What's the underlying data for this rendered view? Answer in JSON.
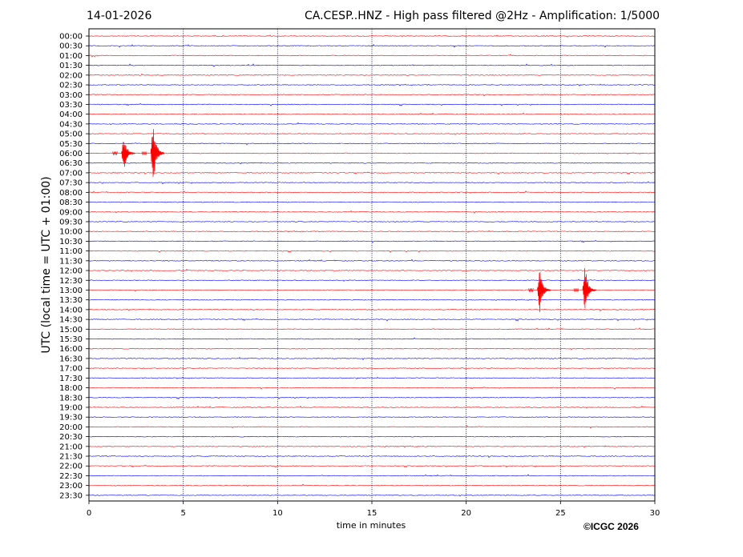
{
  "header": {
    "date": "14-01-2026",
    "title": "CA.CESP..HNZ - High pass filtered @2Hz - Amplification: 1/5000"
  },
  "footer": {
    "credit": "©ICGC 2026"
  },
  "chart_data": {
    "type": "line",
    "title": "CA.CESP..HNZ - High pass filtered @2Hz - Amplification: 1/5000",
    "xlabel": "time in minutes",
    "ylabel": "UTC (local time = UTC + 01:00)",
    "xlim": [
      0,
      30
    ],
    "x_ticks": [
      0,
      5,
      10,
      15,
      20,
      25,
      30
    ],
    "grid": "vertical dotted at each x tick",
    "trace_colors": [
      "#ff0000",
      "#0000ff"
    ],
    "rows": [
      "00:00",
      "00:30",
      "01:00",
      "01:30",
      "02:00",
      "02:30",
      "03:00",
      "03:30",
      "04:00",
      "04:30",
      "05:00",
      "05:30",
      "06:00",
      "06:30",
      "07:00",
      "07:30",
      "08:00",
      "08:30",
      "09:00",
      "09:30",
      "10:00",
      "10:30",
      "11:00",
      "11:30",
      "12:00",
      "12:30",
      "13:00",
      "13:30",
      "14:00",
      "14:30",
      "15:00",
      "15:30",
      "16:00",
      "16:30",
      "17:00",
      "17:30",
      "18:00",
      "18:30",
      "19:00",
      "19:30",
      "20:00",
      "20:30",
      "21:00",
      "21:30",
      "22:00",
      "22:30",
      "23:00",
      "23:30"
    ],
    "events": [
      {
        "row": "06:00",
        "minute": 1.85,
        "amplitude_rows": 1.9
      },
      {
        "row": "06:00",
        "minute": 3.4,
        "amplitude_rows": 3.3
      },
      {
        "row": "13:00",
        "minute": 23.9,
        "amplitude_rows": 2.4
      },
      {
        "row": "13:00",
        "minute": 26.3,
        "amplitude_rows": 2.7
      }
    ]
  }
}
